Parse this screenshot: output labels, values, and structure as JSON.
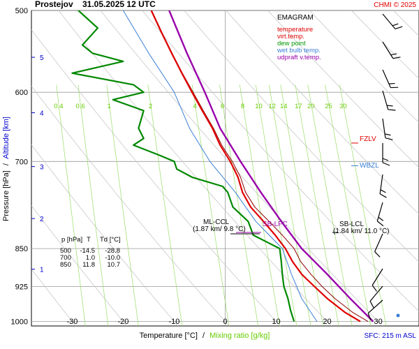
{
  "header": {
    "station": "Prostejov",
    "datetime": "31.05.2025 12 UTC",
    "credit": "CHMI © 2025"
  },
  "legend": {
    "title": "EMAGRAM",
    "items": [
      {
        "label": "temperature",
        "color": "#e00000"
      },
      {
        "label": "virt.temp.",
        "color": "#e00000"
      },
      {
        "label": "dew point",
        "color": "#009900"
      },
      {
        "label": "wet bulb temp.",
        "color": "#3a7fd5"
      },
      {
        "label": "udpraft v.temp.",
        "color": "#9900aa"
      }
    ]
  },
  "axis_titles": {
    "y_left_part1": "Pressure [hPa]",
    "y_left_sep": "/",
    "y_left_part2": "Altitude [km]",
    "x_part1": "Temperature [°C]",
    "x_sep": "/",
    "x_part2": "Mixing ratio [g/kg]"
  },
  "annotations": {
    "fzlv": "FZLV",
    "wbzl": "WBZL",
    "sb_lfc": "SB-LFC",
    "ml_ccl_1": "ML-CCL",
    "ml_ccl_2": "(1.87 km/ 9.8 °C)",
    "sb_lcl_1": "SB-LCL",
    "sb_lcl_2": "(1.84 km/ 11.0 °C)",
    "sfc": "SFC: 215 m ASL"
  },
  "table": {
    "headers": [
      "p [hPa]",
      "T",
      "Td [°C]"
    ],
    "rows": [
      [
        "500",
        "-14.5",
        "-28.8"
      ],
      [
        "700",
        "1.0",
        "-10.0"
      ],
      [
        "850",
        "11.8",
        "10.7"
      ]
    ]
  },
  "colors": {
    "temperature": "#e00000",
    "virtual_temperature": "#8a0000",
    "dew_point": "#008800",
    "wet_bulb": "#3a7fd5",
    "updraft": "#9900aa",
    "altitude_text": "#0000cc",
    "mixing_ratio_text": "#66cc00",
    "grid": "#9a9a9a",
    "dry_adiabat": "#c8c8c8",
    "mixing_ratio_line": "#99dd66"
  },
  "chart_data": {
    "type": "line",
    "x_axis": {
      "label": "Temperature [°C]",
      "ticks": [
        -30,
        -20,
        -10,
        0,
        10,
        20,
        30
      ],
      "range": [
        -38,
        38
      ]
    },
    "y_axis": {
      "label": "Pressure [hPa]",
      "scale": "log",
      "ticks": [
        500,
        600,
        700,
        850,
        925,
        1000
      ],
      "range": [
        1010,
        500
      ]
    },
    "altitude_ticks_km": [
      1,
      2,
      3,
      4,
      5
    ],
    "altitude_tick_pressures": [
      890,
      795,
      708,
      628,
      555
    ],
    "mixing_ratio_labels": [
      "0.4",
      "0.6",
      "1",
      "2",
      "4",
      "6",
      "8",
      "10",
      "12",
      "14",
      "17",
      "20",
      "25",
      "30"
    ],
    "mixing_ratio_values": [
      0.4,
      0.6,
      1,
      2,
      4,
      6,
      8,
      10,
      12,
      14,
      17,
      20,
      25,
      30
    ],
    "series": [
      {
        "name": "temperature",
        "p": [
          1000,
          980,
          950,
          925,
          900,
          875,
          850,
          825,
          800,
          775,
          750,
          725,
          700,
          675,
          650,
          625,
          600,
          575,
          550,
          525,
          500
        ],
        "t": [
          26.5,
          23.5,
          20.0,
          17.5,
          15.0,
          13.2,
          11.8,
          9.8,
          7.5,
          5.0,
          3.4,
          2.5,
          1.0,
          -1.0,
          -2.5,
          -4.5,
          -6.5,
          -8.5,
          -10.5,
          -12.5,
          -14.5
        ]
      },
      {
        "name": "virt.temp.",
        "p": [
          1000,
          980,
          950,
          925,
          900,
          875,
          850,
          825,
          800,
          775,
          750,
          725,
          700,
          675,
          650,
          625,
          600,
          575,
          550,
          525,
          500
        ],
        "t": [
          28.0,
          25.0,
          21.5,
          19.0,
          16.8,
          14.8,
          13.5,
          11.2,
          8.6,
          5.8,
          4.0,
          3.0,
          1.4,
          -0.7,
          -2.3,
          -4.3,
          -6.3,
          -8.4,
          -10.4,
          -12.4,
          -14.4
        ]
      },
      {
        "name": "dew point",
        "p": [
          1000,
          975,
          950,
          925,
          900,
          875,
          850,
          825,
          800,
          775,
          750,
          740,
          725,
          712,
          700,
          690,
          675,
          665,
          650,
          625,
          610,
          600,
          590,
          575,
          560,
          550,
          540,
          520,
          500
        ],
        "td": [
          13.5,
          12.8,
          12.3,
          11.5,
          11.2,
          11.0,
          10.7,
          5.5,
          4.5,
          1.5,
          0.5,
          -0.5,
          -6.5,
          -9.5,
          -10.0,
          -13.0,
          -18.0,
          -16.0,
          -17.0,
          -16.0,
          -22.0,
          -16.0,
          -18.0,
          -30.0,
          -20.0,
          -26.0,
          -28.0,
          -25.0,
          -28.8
        ]
      },
      {
        "name": "wet bulb temp.",
        "p": [
          1000,
          950,
          900,
          850,
          800,
          750,
          700,
          650,
          600,
          550,
          500
        ],
        "t": [
          18.0,
          15.0,
          13.0,
          11.2,
          6.0,
          2.0,
          -3.0,
          -7.0,
          -10.0,
          -15.0,
          -20.0
        ]
      },
      {
        "name": "udpraft v.temp.",
        "p": [
          1000,
          950,
          900,
          850,
          800,
          750,
          700,
          650,
          600,
          550,
          500
        ],
        "t": [
          29.0,
          24.5,
          20.0,
          15.0,
          11.0,
          7.0,
          3.0,
          -1.0,
          -4.0,
          -7.5,
          -11.0
        ]
      }
    ],
    "levels": {
      "fzlv_hpa": 675,
      "wbzl_hpa": 710,
      "sb_lfc_hpa": 820
    }
  }
}
